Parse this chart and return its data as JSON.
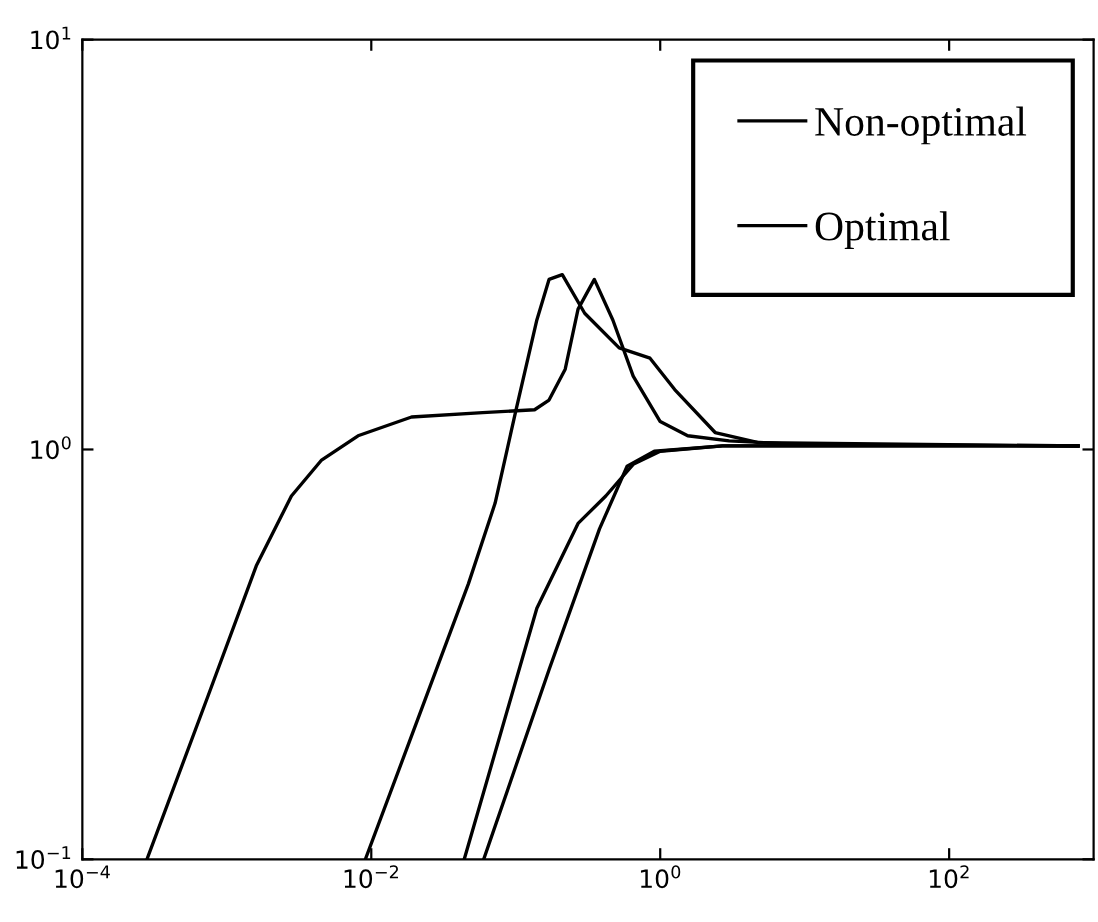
{
  "chart_data": {
    "type": "line",
    "log": "xy",
    "xlim": [
      0.0001,
      1000
    ],
    "ylim": [
      0.1,
      10
    ],
    "xticks": [
      {
        "value": 0.0001,
        "label": "10$^{−4}$"
      },
      {
        "value": 0.01,
        "label": "10$^{−2}$"
      },
      {
        "value": 1,
        "label": "10$^{0}$"
      },
      {
        "value": 100,
        "label": "10$^{2}$"
      }
    ],
    "yticks": [
      {
        "value": 0.1,
        "label": "10$^{−1}$"
      },
      {
        "value": 1,
        "label": "10$^{0}$"
      },
      {
        "value": 10,
        "label": "10$^{1}$"
      }
    ],
    "legend": "top right",
    "grid": false,
    "line_style": "solid",
    "marker": "none",
    "series": [
      {
        "name": "Non-optimal",
        "color": "#000000",
        "x": [
          0.00028,
          0.00074,
          0.0016,
          0.0028,
          0.0045,
          0.0081,
          0.019,
          0.059,
          0.135,
          0.17,
          0.22,
          0.27,
          0.35,
          0.47,
          0.65,
          1.0,
          1.55,
          3.0,
          8.1,
          780
        ],
        "values": [
          0.1,
          0.25,
          0.52,
          0.77,
          0.94,
          1.08,
          1.2,
          1.23,
          1.25,
          1.32,
          1.57,
          2.2,
          2.6,
          2.07,
          1.51,
          1.17,
          1.08,
          1.05,
          1.03,
          1.02
        ]
      },
      {
        "name": "Optimal",
        "color": "#000000",
        "x": [
          0.0091,
          0.019,
          0.047,
          0.072,
          0.1,
          0.14,
          0.17,
          0.21,
          0.3,
          0.52,
          0.85,
          1.26,
          2.4,
          4.7,
          780
        ],
        "values": [
          0.1,
          0.2,
          0.47,
          0.74,
          1.24,
          2.07,
          2.6,
          2.67,
          2.15,
          1.77,
          1.67,
          1.4,
          1.1,
          1.04,
          1.02
        ]
      },
      {
        "color": "#000000",
        "x": [
          0.044,
          0.14,
          0.27,
          0.42,
          0.65,
          1.0,
          2.7,
          780
        ],
        "values": [
          0.1,
          0.41,
          0.66,
          0.77,
          0.92,
          0.99,
          1.02,
          1.02
        ]
      },
      {
        "color": "#000000",
        "x": [
          0.06,
          0.17,
          0.38,
          0.59,
          0.91,
          2.7,
          780
        ],
        "values": [
          0.1,
          0.29,
          0.64,
          0.91,
          0.99,
          1.02,
          1.02
        ]
      }
    ]
  }
}
